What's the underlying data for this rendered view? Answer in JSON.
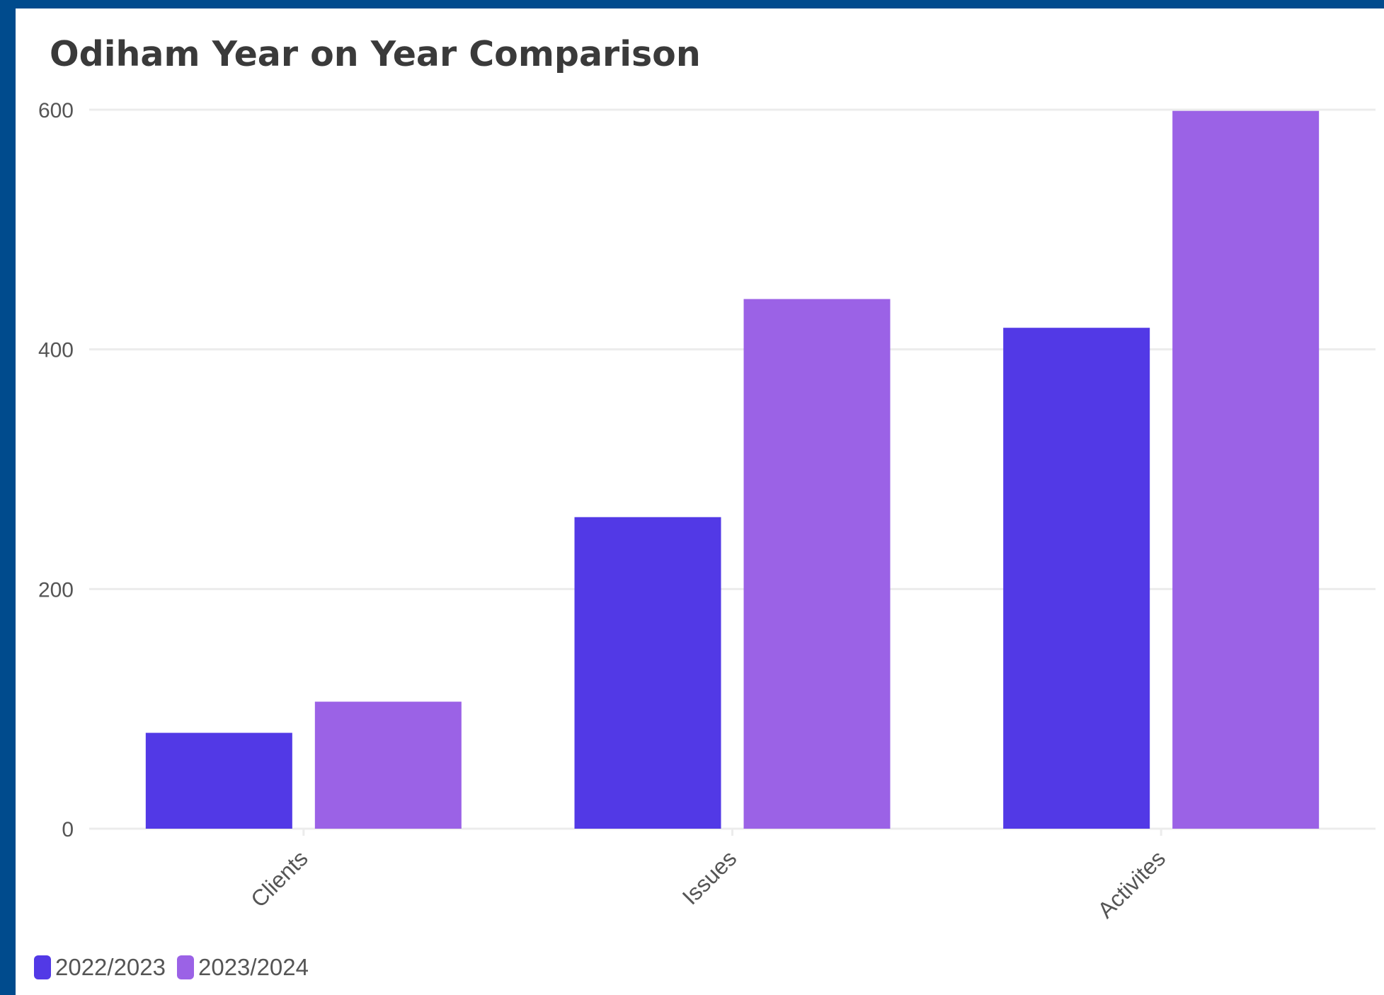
{
  "chart_data": {
    "type": "bar",
    "title": "Odiham Year on Year Comparison",
    "xlabel": "",
    "ylabel": "",
    "categories": [
      "Clients",
      "Issues",
      "Activites"
    ],
    "series": [
      {
        "name": "2022/2023",
        "color": "#5239e6",
        "values": [
          80,
          260,
          418
        ]
      },
      {
        "name": "2023/2024",
        "color": "#9b62e6",
        "values": [
          106,
          442,
          599
        ]
      }
    ],
    "ylim": [
      0,
      600
    ],
    "yticks": [
      0,
      200,
      400,
      600
    ],
    "ytick_labels": [
      "0",
      "200",
      "400",
      "600"
    ],
    "grid": true,
    "legend_position": "bottom-left",
    "colors": {
      "background_frame": "#004b8d",
      "card": "#ffffff",
      "gridline": "#ececec",
      "title": "#3a3a3a",
      "tick_text": "#555555"
    }
  }
}
